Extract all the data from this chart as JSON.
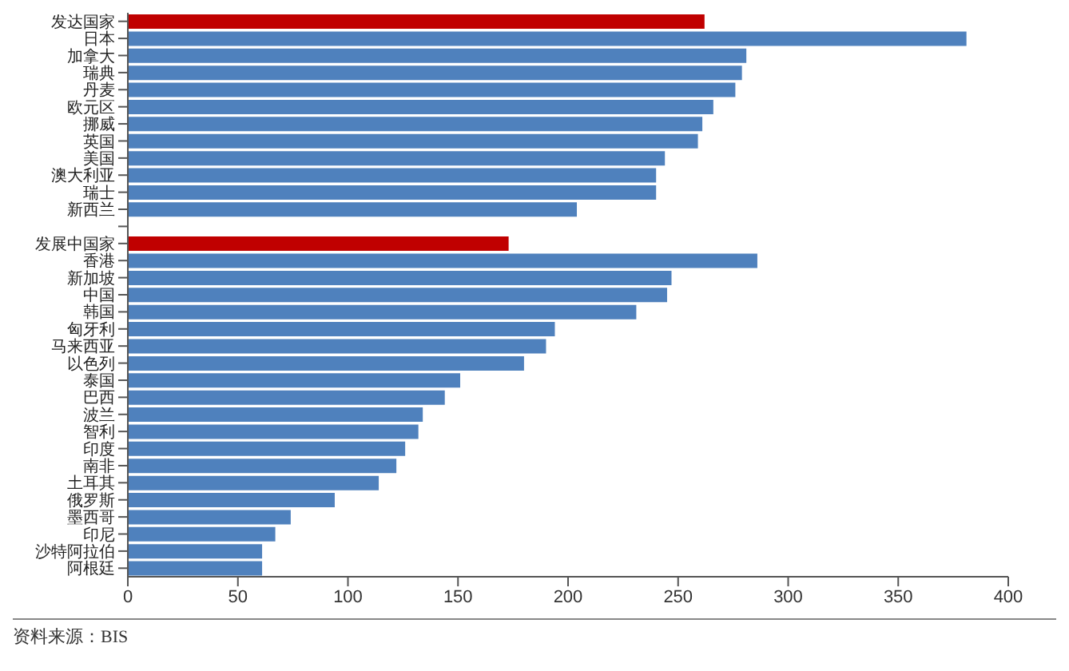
{
  "chart_data": {
    "type": "bar",
    "orientation": "horizontal",
    "categories": [
      "发达国家",
      "日本",
      "加拿大",
      "瑞典",
      "丹麦",
      "欧元区",
      "挪威",
      "英国",
      "美国",
      "澳大利亚",
      "瑞士",
      "新西兰",
      null,
      "发展中国家",
      "香港",
      "新加坡",
      "中国",
      "韩国",
      "匈牙利",
      "马来西亚",
      "以色列",
      "泰国",
      "巴西",
      "波兰",
      "智利",
      "印度",
      "南非",
      "土耳其",
      "俄罗斯",
      "墨西哥",
      "印尼",
      "沙特阿拉伯",
      "阿根廷"
    ],
    "values": [
      262,
      381,
      281,
      279,
      276,
      266,
      261,
      259,
      244,
      240,
      240,
      204,
      null,
      173,
      286,
      247,
      245,
      231,
      194,
      190,
      180,
      151,
      144,
      134,
      132,
      126,
      122,
      114,
      94,
      74,
      67,
      61,
      61
    ],
    "colors": [
      "#c00000",
      "#4f81bd",
      "#4f81bd",
      "#4f81bd",
      "#4f81bd",
      "#4f81bd",
      "#4f81bd",
      "#4f81bd",
      "#4f81bd",
      "#4f81bd",
      "#4f81bd",
      "#4f81bd",
      "#4f81bd",
      "#c00000",
      "#4f81bd",
      "#4f81bd",
      "#4f81bd",
      "#4f81bd",
      "#4f81bd",
      "#4f81bd",
      "#4f81bd",
      "#4f81bd",
      "#4f81bd",
      "#4f81bd",
      "#4f81bd",
      "#4f81bd",
      "#4f81bd",
      "#4f81bd",
      "#4f81bd",
      "#4f81bd",
      "#4f81bd",
      "#4f81bd",
      "#4f81bd"
    ],
    "xlim": [
      0,
      400
    ],
    "xticks": [
      0,
      50,
      100,
      150,
      200,
      250,
      300,
      350,
      400
    ],
    "annotations": [
      "资料来源：BIS"
    ],
    "grid": false
  }
}
